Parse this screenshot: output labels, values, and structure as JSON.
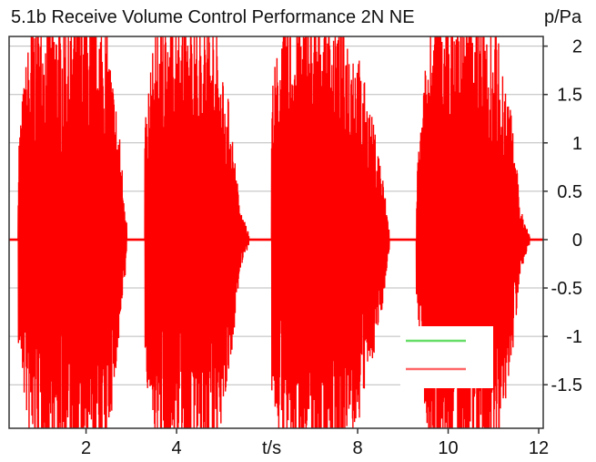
{
  "chart_data": {
    "type": "line",
    "title": "5.1b Receive Volume Control Performance 2N NE",
    "ylabel": "p/Pa",
    "xlabel": "t/s",
    "xlim": [
      0.3,
      12.1
    ],
    "ylim": [
      -1.95,
      2.1
    ],
    "x_ticks": [
      2,
      4,
      8,
      10,
      12
    ],
    "y_ticks": [
      2,
      1.5,
      1,
      0.5,
      0,
      -0.5,
      -1,
      -1.5
    ],
    "y_tick_labels": [
      "2",
      "1.5",
      "1",
      "0.5",
      "0",
      "-0.5",
      "-1",
      "-1.5"
    ],
    "x_tick_labels": [
      "2",
      "4",
      "8",
      "10",
      "12"
    ],
    "grid": true,
    "series": [
      {
        "color": "#ff0000",
        "bursts": [
          {
            "start": 0.5,
            "end": 2.9,
            "envelope": [
              [
                0.5,
                1.0
              ],
              [
                0.8,
                2.2
              ],
              [
                1.2,
                2.2
              ],
              [
                1.6,
                2.2
              ],
              [
                2.0,
                2.2
              ],
              [
                2.4,
                2.2
              ],
              [
                2.7,
                1.2
              ],
              [
                2.9,
                0.2
              ]
            ]
          },
          {
            "start": 3.3,
            "end": 5.6,
            "envelope": [
              [
                3.3,
                1.2
              ],
              [
                3.6,
                2.2
              ],
              [
                4.0,
                2.2
              ],
              [
                4.4,
                2.2
              ],
              [
                4.8,
                2.2
              ],
              [
                5.2,
                1.2
              ],
              [
                5.4,
                0.3
              ],
              [
                5.6,
                0.05
              ]
            ]
          },
          {
            "start": 6.1,
            "end": 8.7,
            "envelope": [
              [
                6.1,
                1.5
              ],
              [
                6.4,
                2.2
              ],
              [
                6.9,
                2.2
              ],
              [
                7.4,
                2.2
              ],
              [
                7.9,
                2.0
              ],
              [
                8.3,
                1.2
              ],
              [
                8.5,
                0.8
              ],
              [
                8.7,
                0.1
              ]
            ]
          },
          {
            "start": 9.3,
            "end": 11.8,
            "envelope": [
              [
                9.3,
                0.6
              ],
              [
                9.6,
                2.2
              ],
              [
                10.0,
                2.2
              ],
              [
                10.5,
                2.2
              ],
              [
                11.0,
                2.2
              ],
              [
                11.4,
                1.2
              ],
              [
                11.6,
                0.3
              ],
              [
                11.8,
                0.05
              ]
            ]
          }
        ]
      },
      {
        "color": "#66dd66",
        "values": []
      }
    ],
    "legend": "bottom-right"
  },
  "colors": {
    "signal": "#ff0000",
    "legend_green": "#66dd66",
    "legend_red": "#ff6666",
    "grid": "#bbbbbb"
  }
}
